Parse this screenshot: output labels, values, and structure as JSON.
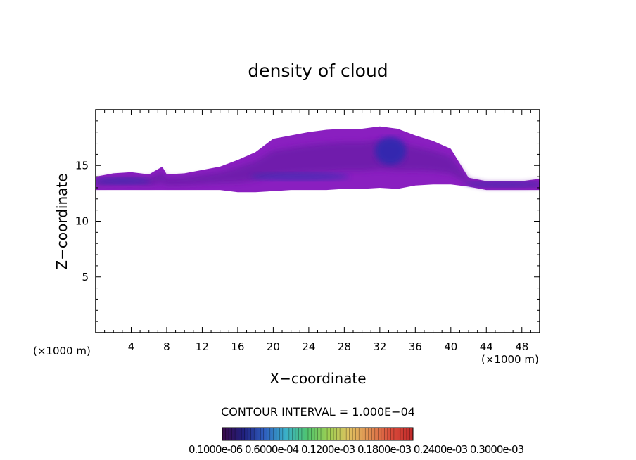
{
  "chart_data": {
    "type": "heatmap",
    "title": "density of cloud",
    "xlabel": "X−coordinate",
    "ylabel": "Z−coordinate",
    "x_unit_label": "(×1000 m)",
    "xlim": [
      0,
      50
    ],
    "ylim": [
      0,
      20
    ],
    "xticks": [
      4,
      8,
      12,
      16,
      20,
      24,
      28,
      32,
      36,
      40,
      44,
      48
    ],
    "yticks": [
      5,
      10,
      15
    ],
    "grid": false,
    "cloud_layer": {
      "x": [
        0,
        2,
        4,
        6,
        7.5,
        8,
        10,
        12,
        14,
        16,
        18,
        20,
        22,
        24,
        26,
        28,
        30,
        32,
        34,
        36,
        38,
        40,
        42,
        44,
        46,
        48,
        50
      ],
      "bottom": [
        12.8,
        12.8,
        12.8,
        12.8,
        12.8,
        12.8,
        12.8,
        12.8,
        12.8,
        12.6,
        12.6,
        12.7,
        12.8,
        12.8,
        12.8,
        12.9,
        12.9,
        13.0,
        12.9,
        13.2,
        13.3,
        13.3,
        13.1,
        12.8,
        12.8,
        12.8,
        12.8
      ],
      "top": [
        14.0,
        14.3,
        14.4,
        14.2,
        14.9,
        14.2,
        14.3,
        14.6,
        14.9,
        15.5,
        16.2,
        17.4,
        17.7,
        18.0,
        18.2,
        18.3,
        18.3,
        18.5,
        18.3,
        17.7,
        17.2,
        16.5,
        13.9,
        13.6,
        13.6,
        13.6,
        13.8
      ]
    },
    "colorbar": {
      "contour_interval": "CONTOUR INTERVAL = 1.000E−04",
      "tick_labels": "0.1000e-06  0.6000e-04  0.1200e-03  0.1800e-03  0.2400e-03  0.3000e-03",
      "colors": [
        "#3a0a4a",
        "#20207e",
        "#2f5fbf",
        "#3ab0c8",
        "#4fc46f",
        "#9ccf52",
        "#e0c060",
        "#e08a50",
        "#d94a3a",
        "#c02a2a"
      ]
    }
  }
}
